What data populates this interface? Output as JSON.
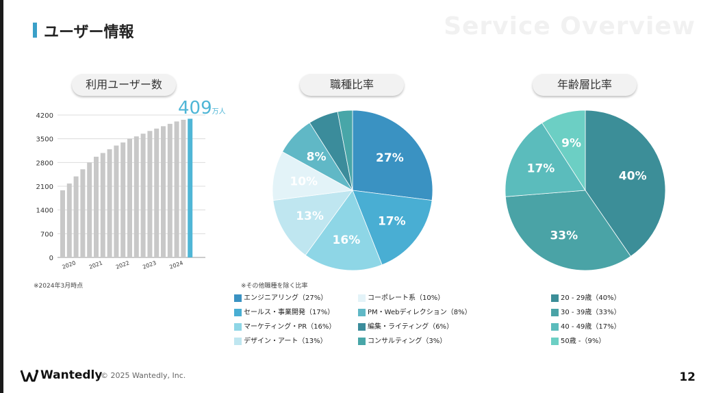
{
  "page": {
    "title": "ユーザー情報",
    "watermark": "Service Overview",
    "copyright": "© 2025 Wantedly, Inc.",
    "brand": "Wantedly",
    "page_number": "12",
    "note_left": "※2024年3月時点",
    "note_middle": "※その他職種を除く比率"
  },
  "colors": {
    "accent": "#3aa0c8",
    "bar": "#c8c8c8",
    "bar_highlight": "#4fb6d6"
  },
  "pills": {
    "users": "利用ユーザー数",
    "jobs": "職種比率",
    "ages": "年齢層比率"
  },
  "big_number": {
    "value": "409",
    "unit": "万人"
  },
  "chart_data": [
    {
      "type": "bar",
      "title": "利用ユーザー数",
      "ylim": [
        0,
        4200
      ],
      "yticks": [
        "0",
        "700",
        "1400",
        "2100",
        "2800",
        "3500",
        "4200"
      ],
      "xticks": [
        "2020",
        "2021",
        "2022",
        "2023",
        "2024"
      ],
      "grid": true,
      "values": [
        1980,
        2180,
        2390,
        2600,
        2800,
        2970,
        3080,
        3190,
        3300,
        3390,
        3500,
        3570,
        3650,
        3730,
        3800,
        3870,
        3940,
        4010,
        4060,
        4090
      ]
    },
    {
      "type": "pie",
      "title": "職種比率",
      "slices": [
        {
          "label": "エンジニアリング（27%）",
          "value": 27,
          "color": "#3a92c2",
          "text": "27%",
          "show": true
        },
        {
          "label": "セールス・事業開発（17%）",
          "value": 17,
          "color": "#49aed3",
          "text": "17%",
          "show": true
        },
        {
          "label": "マーケティング・PR（16%）",
          "value": 16,
          "color": "#8ed6e6",
          "text": "16%",
          "show": true
        },
        {
          "label": "デザイン・アート（13%）",
          "value": 13,
          "color": "#bfe6f0",
          "text": "13%",
          "show": true
        },
        {
          "label": "コーポレート系（10%）",
          "value": 10,
          "color": "#e3f3f8",
          "text": "10%",
          "show": true
        },
        {
          "label": "PM・Webディレクション（8%）",
          "value": 8,
          "color": "#60b8c6",
          "text": "8%",
          "show": true
        },
        {
          "label": "編集・ライティング（6%）",
          "value": 6,
          "color": "#3b8c9b",
          "text": "",
          "show": false
        },
        {
          "label": "コンサルティング（3%）",
          "value": 3,
          "color": "#48a6a8",
          "text": "",
          "show": false
        }
      ]
    },
    {
      "type": "pie",
      "title": "年齢層比率",
      "slices": [
        {
          "label": "20 - 29歳（40%）",
          "value": 40,
          "color": "#3c8e98",
          "text": "40%",
          "show": true
        },
        {
          "label": "30 - 39歳（33%）",
          "value": 33,
          "color": "#4aa3a6",
          "text": "33%",
          "show": true
        },
        {
          "label": "40 - 49歳（17%）",
          "value": 17,
          "color": "#5bbcbc",
          "text": "17%",
          "show": true
        },
        {
          "label": "50歳 -（9%）",
          "value": 9,
          "color": "#6ccfc4",
          "text": "9%",
          "show": true
        }
      ]
    }
  ],
  "legend_jobs_col1": [
    "エンジニアリング（27%）",
    "セールス・事業開発（17%）",
    "マーケティング・PR（16%）",
    "デザイン・アート（13%）"
  ],
  "legend_jobs_col2": [
    "コーポレート系（10%）",
    "PM・Webディレクション（8%）",
    "編集・ライティング（6%）",
    "コンサルティング（3%）"
  ],
  "legend_ages": [
    "20 - 29歳（40%）",
    "30 - 39歳（33%）",
    "40 - 49歳（17%）",
    "50歳 -（9%）"
  ]
}
